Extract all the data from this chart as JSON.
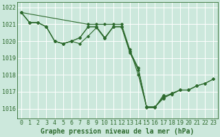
{
  "background_color": "#cce8dc",
  "grid_color": "#ffffff",
  "line_color": "#2d6a2d",
  "marker_color": "#2d6a2d",
  "xlabel": "Graphe pression niveau de la mer (hPa)",
  "xlabel_fontsize": 7,
  "tick_fontsize": 6,
  "xlim": [
    -0.5,
    23.5
  ],
  "ylim": [
    1015.4,
    1022.3
  ],
  "yticks": [
    1016,
    1017,
    1018,
    1019,
    1020,
    1021,
    1022
  ],
  "xticks": [
    0,
    1,
    2,
    3,
    4,
    5,
    6,
    7,
    8,
    9,
    10,
    11,
    12,
    13,
    14,
    15,
    16,
    17,
    18,
    19,
    20,
    21,
    22,
    23
  ],
  "series": [
    {
      "x": [
        0,
        1,
        2,
        3,
        4,
        5,
        6,
        7,
        8,
        9,
        10,
        11,
        12,
        13,
        14,
        15,
        16,
        17,
        18,
        19,
        20,
        21
      ],
      "y": [
        1021.7,
        1021.1,
        1021.1,
        1020.85,
        1020.0,
        1019.85,
        1020.0,
        1020.2,
        1020.85,
        1020.85,
        1020.2,
        1020.85,
        1020.85,
        1019.4,
        1018.4,
        1016.1,
        1016.1,
        1016.6,
        1016.9,
        1017.1,
        1017.1,
        1017.35
      ]
    },
    {
      "x": [
        0,
        1,
        2,
        3,
        4,
        5,
        6,
        7,
        8,
        9,
        10,
        11,
        12,
        13,
        14,
        15,
        16,
        17
      ],
      "y": [
        1021.7,
        1021.1,
        1021.1,
        1020.85,
        1020.0,
        1019.85,
        1020.0,
        1019.85,
        1020.3,
        1020.8,
        1020.15,
        1020.85,
        1020.85,
        1019.3,
        1018.3,
        1016.05,
        1016.05,
        1016.8
      ]
    },
    {
      "x": [
        0,
        1,
        2,
        3,
        4,
        5,
        6,
        7,
        8,
        9,
        10,
        11,
        12,
        13,
        14,
        15,
        16,
        17,
        18,
        19,
        20,
        21,
        22,
        23
      ],
      "y": [
        1021.7,
        1021.1,
        1021.1,
        1020.85,
        1020.0,
        1019.85,
        1020.0,
        1020.2,
        1020.85,
        1020.85,
        1020.2,
        1020.85,
        1020.85,
        1019.4,
        1018.4,
        1016.1,
        1016.1,
        1016.65,
        1016.85,
        1017.1,
        1017.1,
        1017.35,
        1017.5,
        1017.75
      ]
    },
    {
      "x": [
        0,
        8,
        9,
        10,
        11,
        12,
        13,
        14,
        15,
        16,
        17,
        18,
        19,
        20,
        21,
        22,
        23
      ],
      "y": [
        1021.7,
        1021.0,
        1021.0,
        1021.0,
        1021.0,
        1021.0,
        1019.5,
        1018.0,
        1016.1,
        1016.1,
        1016.7,
        1016.9,
        1017.1,
        1017.1,
        1017.35,
        1017.5,
        1017.75
      ]
    }
  ]
}
